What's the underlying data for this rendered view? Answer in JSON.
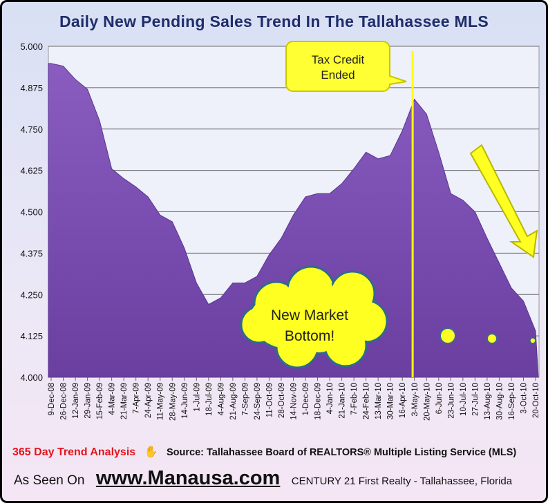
{
  "chart_data": {
    "type": "area",
    "title": "Daily New Pending Sales Trend In The Tallahassee MLS",
    "xlabel": "",
    "ylabel": "",
    "ylim": [
      4.0,
      5.0
    ],
    "yticks": [
      "5.000",
      "4.875",
      "4.750",
      "4.625",
      "4.500",
      "4.375",
      "4.250",
      "4.125",
      "4.000"
    ],
    "grid": true,
    "categories": [
      "9-Dec-08",
      "26-Dec-08",
      "12-Jan-09",
      "29-Jan-09",
      "15-Feb-09",
      "4-Mar-09",
      "21-Mar-09",
      "7-Apr-09",
      "24-Apr-09",
      "11-May-09",
      "28-May-09",
      "14-Jun-09",
      "1-Jul-09",
      "18-Jul-09",
      "4-Aug-09",
      "21-Aug-09",
      "7-Sep-09",
      "24-Sep-09",
      "11-Oct-09",
      "28-Oct-09",
      "14-Nov-09",
      "1-Dec-09",
      "18-Dec-09",
      "4-Jan-10",
      "21-Jan-10",
      "7-Feb-10",
      "24-Feb-10",
      "13-Mar-10",
      "30-Mar-10",
      "16-Apr-10",
      "3-May-10",
      "20-May-10",
      "6-Jun-10",
      "23-Jun-10",
      "10-Jul-10",
      "27-Jul-10",
      "13-Aug-10",
      "30-Aug-10",
      "16-Sep-10",
      "3-Oct-10",
      "20-Oct-10"
    ],
    "series": [
      {
        "name": "Daily New Pending Sales (365 day trend)",
        "color": "#7b4fb0",
        "values": [
          4.948,
          4.94,
          4.9,
          4.87,
          4.775,
          4.63,
          4.6,
          4.575,
          4.545,
          4.49,
          4.47,
          4.39,
          4.285,
          4.22,
          4.24,
          4.285,
          4.285,
          4.305,
          4.37,
          4.42,
          4.49,
          4.545,
          4.555,
          4.555,
          4.585,
          4.63,
          4.68,
          4.66,
          4.67,
          4.745,
          4.84,
          4.795,
          4.68,
          4.555,
          4.535,
          4.5,
          4.42,
          4.345,
          4.27,
          4.23,
          4.14
        ]
      }
    ],
    "annotations": {
      "tax_credit": "Tax Credit\nEnded",
      "tax_credit_line_at": "1-May-10",
      "bottom": "New Market\nBottom!",
      "dots_at": [
        4.125,
        4.12,
        4.112
      ]
    }
  },
  "footer": {
    "trend": "365 Day Trend Analysis",
    "source": "Source: Tallahassee Board of REALTORS® Multiple Listing Service (MLS)",
    "seen": "As Seen On",
    "url": "www.Manausa.com",
    "company": "CENTURY 21 First Realty - Tallahassee, Florida"
  },
  "colors": {
    "title": "#1f2d6b",
    "area": "#7b4fb0",
    "highlight": "#ffff00",
    "trend_text": "#e3141b"
  }
}
